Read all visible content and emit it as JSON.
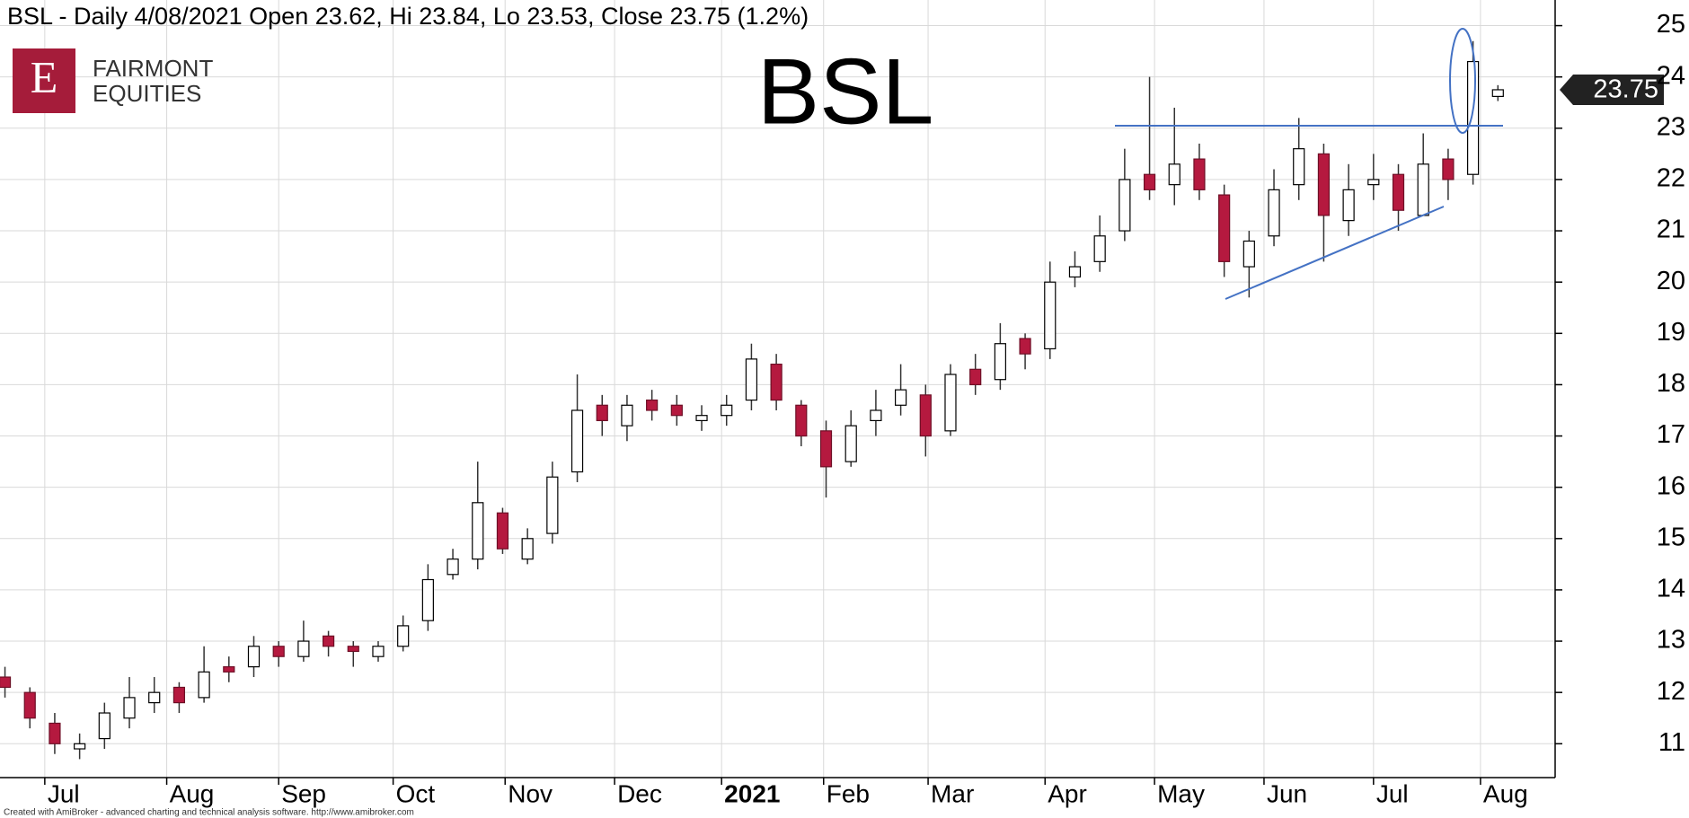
{
  "header": {
    "brand_letter": "E",
    "brand_line1": "FAIRMONT",
    "brand_line2": "EQUITIES",
    "footer": "Created with AmiBroker - advanced charting and technical analysis software. http://www.amibroker.com"
  },
  "chart_data": {
    "type": "candlestick",
    "title": "BSL - Daily 4/08/2021 Open 23.62, Hi 23.84, Lo 23.53, Close 23.75 (1.2%)",
    "annotation": "BSL",
    "up_color": "#ffffff",
    "down_color": "#b5193f",
    "open": [
      12.3,
      12.0,
      11.4,
      10.9,
      11.1,
      11.5,
      11.8,
      12.1,
      11.9,
      12.5,
      12.5,
      12.9,
      12.7,
      13.1,
      12.9,
      12.7,
      12.9,
      13.4,
      14.3,
      14.6,
      15.5,
      14.6,
      15.1,
      16.3,
      17.6,
      17.2,
      17.7,
      17.6,
      17.3,
      17.4,
      17.7,
      18.4,
      17.6,
      17.1,
      16.5,
      17.3,
      17.6,
      17.8,
      17.1,
      18.3,
      18.1,
      18.9,
      18.7,
      20.1,
      20.4,
      21.0,
      22.1,
      21.9,
      22.4,
      21.7,
      20.3,
      20.9,
      21.9,
      22.5,
      21.2,
      21.9,
      22.1,
      21.3,
      22.4,
      22.1,
      23.62
    ],
    "high": [
      12.5,
      12.1,
      11.6,
      11.2,
      11.8,
      12.3,
      12.3,
      12.2,
      12.9,
      12.7,
      13.1,
      13.0,
      13.4,
      13.2,
      13.0,
      13.0,
      13.5,
      14.5,
      14.8,
      16.5,
      15.6,
      15.2,
      16.5,
      18.2,
      17.8,
      17.8,
      17.9,
      17.8,
      17.6,
      17.8,
      18.8,
      18.6,
      17.7,
      17.3,
      17.5,
      17.9,
      18.4,
      18.0,
      18.4,
      18.6,
      19.2,
      19.0,
      20.4,
      20.6,
      21.3,
      22.6,
      24.0,
      23.4,
      22.7,
      21.9,
      21.0,
      22.2,
      23.2,
      22.7,
      22.3,
      22.5,
      22.3,
      22.9,
      22.6,
      24.7,
      23.84
    ],
    "low": [
      11.9,
      11.3,
      10.8,
      10.7,
      10.9,
      11.3,
      11.6,
      11.6,
      11.8,
      12.2,
      12.3,
      12.5,
      12.6,
      12.7,
      12.5,
      12.6,
      12.8,
      13.2,
      14.2,
      14.4,
      14.7,
      14.5,
      14.9,
      16.1,
      17.0,
      16.9,
      17.3,
      17.2,
      17.1,
      17.2,
      17.5,
      17.5,
      16.8,
      15.8,
      16.4,
      17.0,
      17.4,
      16.6,
      17.0,
      17.8,
      17.9,
      18.3,
      18.5,
      19.9,
      20.2,
      20.8,
      21.6,
      21.5,
      21.6,
      20.1,
      19.7,
      20.7,
      21.6,
      20.4,
      20.9,
      21.6,
      21.0,
      21.3,
      21.6,
      21.9,
      23.53
    ],
    "close": [
      12.1,
      11.5,
      11.0,
      11.0,
      11.6,
      11.9,
      12.0,
      11.8,
      12.4,
      12.4,
      12.9,
      12.7,
      13.0,
      12.9,
      12.8,
      12.9,
      13.3,
      14.2,
      14.6,
      15.7,
      14.8,
      15.0,
      16.2,
      17.5,
      17.3,
      17.6,
      17.5,
      17.4,
      17.4,
      17.6,
      18.5,
      17.7,
      17.0,
      16.4,
      17.2,
      17.5,
      17.9,
      17.0,
      18.2,
      18.0,
      18.8,
      18.6,
      20.0,
      20.3,
      20.9,
      22.0,
      21.8,
      22.3,
      21.8,
      20.4,
      20.8,
      21.8,
      22.6,
      21.3,
      21.8,
      22.0,
      21.4,
      22.3,
      22.0,
      24.3,
      23.75
    ],
    "xlim": [
      -0.2,
      62.3
    ],
    "xticks": [
      {
        "value": 1.6,
        "label": "Jul"
      },
      {
        "value": 6.5,
        "label": "Aug"
      },
      {
        "value": 11,
        "label": "Sep"
      },
      {
        "value": 15.6,
        "label": "Oct"
      },
      {
        "value": 20.1,
        "label": "Nov"
      },
      {
        "value": 24.5,
        "label": "Dec"
      },
      {
        "value": 28.8,
        "label": "2021"
      },
      {
        "value": 32.9,
        "label": "Feb"
      },
      {
        "value": 37.1,
        "label": "Mar"
      },
      {
        "value": 41.8,
        "label": "Apr"
      },
      {
        "value": 46.2,
        "label": "May"
      },
      {
        "value": 50.6,
        "label": "Jun"
      },
      {
        "value": 55,
        "label": "Jul"
      },
      {
        "value": 59.3,
        "label": "Aug"
      }
    ],
    "ylim": [
      10.34,
      25.5
    ],
    "yticks": [
      11,
      12,
      13,
      14,
      15,
      16,
      17,
      18,
      19,
      20,
      21,
      22,
      23,
      24,
      25
    ],
    "grid": true
  }
}
